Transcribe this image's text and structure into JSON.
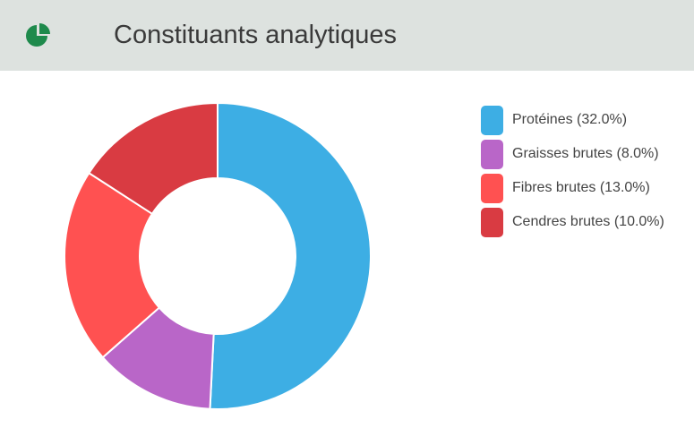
{
  "header": {
    "title": "Constituants analytiques",
    "icon": "pie-chart-icon",
    "icon_color": "#1e8a4c",
    "background": "#dde2df"
  },
  "chart_data": {
    "type": "pie",
    "variant": "donut",
    "categories": [
      "Protéines",
      "Graisses brutes",
      "Fibres brutes",
      "Cendres brutes"
    ],
    "values": [
      32.0,
      8.0,
      13.0,
      10.0
    ],
    "unit": "%",
    "colors": [
      "#3daee4",
      "#b966c8",
      "#ff5151",
      "#d93b42"
    ],
    "legend_labels": [
      "Protéines (32.0%)",
      "Graisses brutes (8.0%)",
      "Fibres brutes (13.0%)",
      "Cendres brutes (10.0%)"
    ],
    "legend_position": "right",
    "start": "top, clockwise"
  }
}
